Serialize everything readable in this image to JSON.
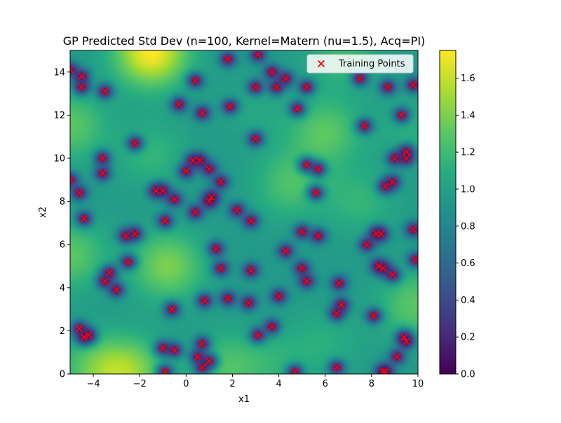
{
  "chart_data": {
    "type": "scatter",
    "title": "GP Predicted Std Dev (n=100, Kernel=Matern (nu=1.5), Acq=PI)",
    "xlabel": "x1",
    "ylabel": "x2",
    "xlim": [
      -5,
      10
    ],
    "ylim": [
      0,
      15
    ],
    "xticks": [
      "−4",
      "−2",
      "0",
      "2",
      "4",
      "6",
      "8",
      "10"
    ],
    "xtick_values": [
      -4,
      -2,
      0,
      2,
      4,
      6,
      8,
      10
    ],
    "yticks": [
      "0",
      "2",
      "4",
      "6",
      "8",
      "10",
      "12",
      "14"
    ],
    "ytick_values": [
      0,
      2,
      4,
      6,
      8,
      10,
      12,
      14
    ],
    "legend": {
      "label": "Training Points",
      "placement": "upper-right"
    },
    "colorbar": {
      "colormap": "viridis",
      "range": [
        0.0,
        1.75
      ],
      "ticks": [
        "0.0",
        "0.2",
        "0.4",
        "0.6",
        "0.8",
        "1.0",
        "1.2",
        "1.4",
        "1.6"
      ],
      "tick_values": [
        0.0,
        0.2,
        0.4,
        0.6,
        0.8,
        1.0,
        1.2,
        1.4,
        1.6
      ]
    },
    "marker_color": "#ff0000",
    "training_points": [
      [
        -5.0,
        14.1
      ],
      [
        -4.5,
        13.8
      ],
      [
        -4.5,
        13.3
      ],
      [
        -3.5,
        13.1
      ],
      [
        -2.2,
        10.7
      ],
      [
        0.4,
        13.6
      ],
      [
        0.7,
        12.1
      ],
      [
        -0.3,
        12.5
      ],
      [
        1.8,
        14.6
      ],
      [
        1.9,
        12.4
      ],
      [
        3.1,
        14.8
      ],
      [
        3.0,
        13.3
      ],
      [
        3.7,
        14.0
      ],
      [
        3.9,
        13.3
      ],
      [
        4.3,
        13.7
      ],
      [
        5.2,
        13.3
      ],
      [
        4.8,
        12.3
      ],
      [
        3.0,
        10.9
      ],
      [
        7.5,
        13.7
      ],
      [
        8.7,
        13.3
      ],
      [
        9.8,
        13.4
      ],
      [
        7.7,
        11.5
      ],
      [
        9.3,
        12.0
      ],
      [
        -5.0,
        9.0
      ],
      [
        -4.6,
        8.4
      ],
      [
        -4.4,
        7.2
      ],
      [
        -3.6,
        10.0
      ],
      [
        -3.6,
        9.3
      ],
      [
        0.3,
        9.9
      ],
      [
        0.6,
        9.9
      ],
      [
        0.0,
        9.4
      ],
      [
        1.0,
        9.5
      ],
      [
        1.5,
        8.9
      ],
      [
        -1.3,
        8.5
      ],
      [
        -1.0,
        8.5
      ],
      [
        -0.5,
        8.1
      ],
      [
        -0.9,
        7.1
      ],
      [
        0.4,
        7.5
      ],
      [
        1.0,
        8.0
      ],
      [
        1.1,
        8.2
      ],
      [
        2.2,
        7.6
      ],
      [
        2.8,
        7.1
      ],
      [
        5.2,
        9.7
      ],
      [
        5.7,
        9.5
      ],
      [
        5.6,
        8.4
      ],
      [
        9.0,
        10.0
      ],
      [
        9.5,
        10.3
      ],
      [
        9.5,
        10.0
      ],
      [
        8.6,
        8.7
      ],
      [
        8.9,
        8.9
      ],
      [
        -2.6,
        6.4
      ],
      [
        -2.2,
        6.5
      ],
      [
        -2.5,
        5.2
      ],
      [
        -3.3,
        4.7
      ],
      [
        -3.5,
        4.3
      ],
      [
        -3.0,
        3.9
      ],
      [
        1.3,
        5.8
      ],
      [
        1.5,
        4.9
      ],
      [
        2.8,
        4.8
      ],
      [
        4.3,
        5.7
      ],
      [
        5.0,
        6.6
      ],
      [
        5.7,
        6.4
      ],
      [
        5.0,
        4.9
      ],
      [
        5.2,
        4.3
      ],
      [
        8.2,
        6.5
      ],
      [
        8.4,
        6.5
      ],
      [
        7.8,
        6.0
      ],
      [
        8.3,
        5.0
      ],
      [
        8.5,
        4.9
      ],
      [
        8.9,
        4.6
      ],
      [
        9.8,
        6.7
      ],
      [
        9.9,
        5.3
      ],
      [
        6.6,
        4.2
      ],
      [
        -0.6,
        3.0
      ],
      [
        0.8,
        3.4
      ],
      [
        1.8,
        3.5
      ],
      [
        2.7,
        3.3
      ],
      [
        4.0,
        3.6
      ],
      [
        6.7,
        3.2
      ],
      [
        6.5,
        2.8
      ],
      [
        8.1,
        2.7
      ],
      [
        3.7,
        2.2
      ],
      [
        3.1,
        1.8
      ],
      [
        -4.6,
        2.1
      ],
      [
        -4.2,
        1.8
      ],
      [
        -4.4,
        1.7
      ],
      [
        -1.0,
        1.2
      ],
      [
        -0.5,
        1.1
      ],
      [
        0.7,
        1.4
      ],
      [
        0.5,
        0.8
      ],
      [
        1.0,
        0.6
      ],
      [
        0.7,
        0.3
      ],
      [
        -0.9,
        0.1
      ],
      [
        4.7,
        0.1
      ],
      [
        6.5,
        0.3
      ],
      [
        8.5,
        0.1
      ],
      [
        8.6,
        0.1
      ],
      [
        9.1,
        0.8
      ],
      [
        9.4,
        1.7
      ],
      [
        9.5,
        1.5
      ]
    ],
    "background_peaks": [
      [
        -1.5,
        14.9,
        1.75
      ],
      [
        -5.0,
        11.5,
        1.3
      ],
      [
        -4.0,
        0.2,
        1.25
      ],
      [
        -2.5,
        0.1,
        1.45
      ],
      [
        -0.8,
        5.0,
        1.4
      ],
      [
        6.0,
        11.2,
        1.3
      ],
      [
        4.5,
        8.8,
        1.25
      ],
      [
        6.8,
        14.8,
        1.2
      ],
      [
        1.7,
        0.3,
        1.25
      ],
      [
        9.9,
        3.2,
        1.3
      ],
      [
        -5.0,
        5.5,
        1.3
      ],
      [
        -1.5,
        10.2,
        1.15
      ],
      [
        7.5,
        8.0,
        1.15
      ],
      [
        3.0,
        12.3,
        1.05
      ],
      [
        6.0,
        1.5,
        1.1
      ],
      [
        3.8,
        0.5,
        1.1
      ],
      [
        9.8,
        11.3,
        1.1
      ]
    ]
  }
}
